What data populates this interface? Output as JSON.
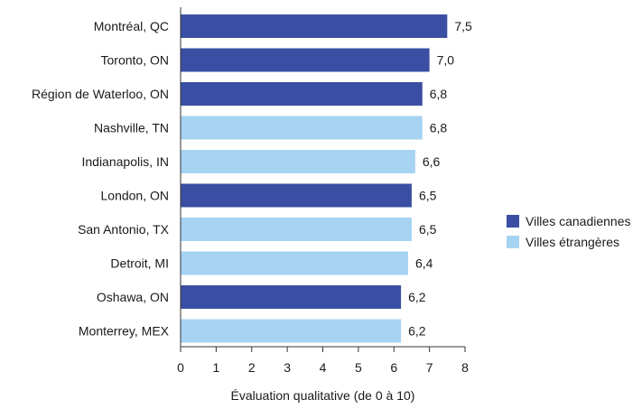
{
  "chart_data": {
    "type": "bar",
    "orientation": "horizontal",
    "categories": [
      "Montréal, QC",
      "Toronto, ON",
      "Région de Waterloo, ON",
      "Nashville, TN",
      "Indianapolis, IN",
      "London, ON",
      "San Antonio, TX",
      "Detroit, MI",
      "Oshawa, ON",
      "Monterrey, MEX"
    ],
    "values": [
      7.5,
      7.0,
      6.8,
      6.8,
      6.6,
      6.5,
      6.5,
      6.4,
      6.2,
      6.2
    ],
    "value_labels": [
      "7,5",
      "7,0",
      "6,8",
      "6,8",
      "6,6",
      "6,5",
      "6,5",
      "6,4",
      "6,2",
      "6,2"
    ],
    "groups": [
      "canadian",
      "canadian",
      "canadian",
      "foreign",
      "foreign",
      "canadian",
      "foreign",
      "foreign",
      "canadian",
      "foreign"
    ],
    "series": [
      {
        "key": "canadian",
        "name": "Villes canadiennes",
        "color": "#3a4fa3"
      },
      {
        "key": "foreign",
        "name": "Villes étrangères",
        "color": "#a7d3f2"
      }
    ],
    "xlabel": "Évaluation qualitative (de 0 à 10)",
    "ylabel": "",
    "title": "",
    "xlim": [
      0,
      8
    ],
    "xticks": [
      0,
      1,
      2,
      3,
      4,
      5,
      6,
      7,
      8
    ],
    "grid": false,
    "legend_position": "right"
  }
}
